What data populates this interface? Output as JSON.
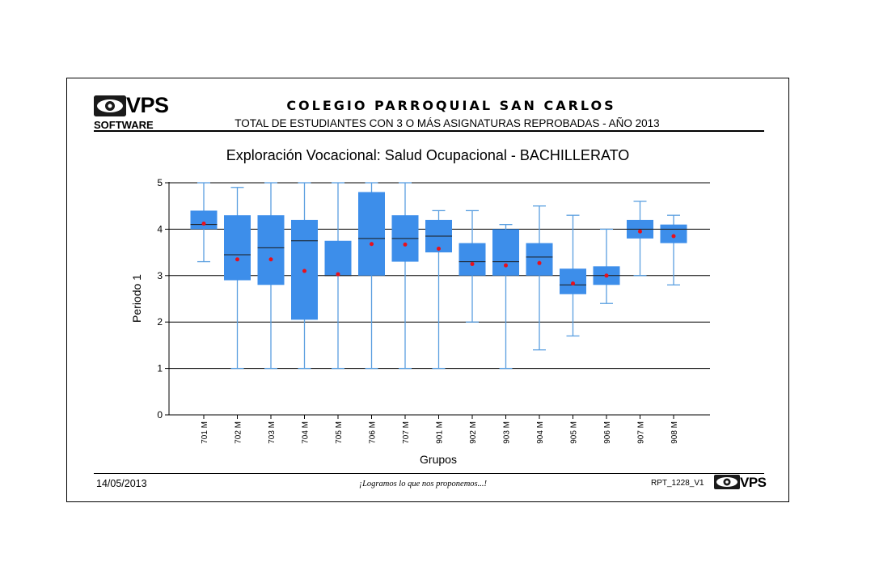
{
  "header": {
    "logo_text": "VPS",
    "logo_subtext": "SOFTWARE",
    "school_name": "COLEGIO PARROQUIAL SAN CARLOS",
    "report_subtitle": "TOTAL DE ESTUDIANTES CON 3 O MÁS ASIGNATURAS REPROBADAS -  AÑO 2013"
  },
  "footer": {
    "date": "14/05/2013",
    "slogan": "¡Logramos lo que nos proponemos...!",
    "report_code": "RPT_1228_V1",
    "logo_text": "VPS"
  },
  "colors": {
    "box_fill": "#3d8eea",
    "whisker": "#5a9fe0",
    "mean_marker": "#e8101c",
    "median_line": "#1a1a1a"
  },
  "chart_data": {
    "type": "box",
    "title": "Exploración Vocacional: Salud Ocupacional - BACHILLERATO",
    "xlabel": "Grupos",
    "ylabel": "Periodo 1",
    "ylim": [
      0,
      5
    ],
    "yticks": [
      0,
      1,
      2,
      3,
      4,
      5
    ],
    "grid": true,
    "categories": [
      "701 M",
      "702 M",
      "703 M",
      "704 M",
      "705 M",
      "706 M",
      "707 M",
      "901 M",
      "902 M",
      "903 M",
      "904 M",
      "905 M",
      "906 M",
      "907 M",
      "908 M"
    ],
    "series": [
      {
        "min": [
          3.3,
          1.0,
          1.0,
          1.0,
          1.0,
          1.0,
          1.0,
          1.0,
          2.0,
          1.0,
          1.4,
          1.7,
          2.4,
          3.0,
          2.8
        ],
        "q1": [
          4.0,
          2.9,
          2.8,
          2.05,
          3.0,
          3.0,
          3.3,
          3.5,
          3.0,
          3.0,
          3.0,
          2.6,
          2.8,
          3.8,
          3.7
        ],
        "median": [
          4.1,
          3.45,
          3.6,
          3.75,
          3.0,
          3.8,
          3.8,
          3.85,
          3.3,
          3.3,
          3.4,
          2.8,
          3.0,
          4.0,
          4.0
        ],
        "q3": [
          4.4,
          4.3,
          4.3,
          4.2,
          3.75,
          4.8,
          4.3,
          4.2,
          3.7,
          4.0,
          3.7,
          3.15,
          3.2,
          4.2,
          4.1
        ],
        "max": [
          5.0,
          4.9,
          5.0,
          5.0,
          5.0,
          5.0,
          5.0,
          4.4,
          4.4,
          4.1,
          4.5,
          4.3,
          4.0,
          4.6,
          4.3
        ],
        "mean": [
          4.12,
          3.35,
          3.35,
          3.1,
          3.03,
          3.68,
          3.67,
          3.58,
          3.25,
          3.22,
          3.27,
          2.83,
          3.0,
          3.95,
          3.85
        ]
      }
    ]
  }
}
